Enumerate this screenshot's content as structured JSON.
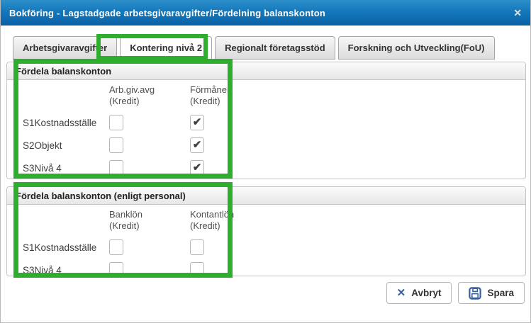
{
  "dialog": {
    "title": "Bokföring - Lagstadgade arbetsgivaravgifter/Fördelning balanskonton"
  },
  "tabs": [
    {
      "label": "Arbetsgivaravgifter",
      "active": false
    },
    {
      "label": "Kontering nivå 2",
      "active": true,
      "annotated": true
    },
    {
      "label": "Regionalt företagsstöd",
      "active": false
    },
    {
      "label": "Forskning och Utveckling(FoU)",
      "active": false
    }
  ],
  "sections": [
    {
      "title": "Fördela balanskonton",
      "columns": [
        {
          "line1": "Arb.giv.avg",
          "line2": "(Kredit)"
        },
        {
          "line1": "Förmåner",
          "line2": "(Kredit)"
        }
      ],
      "rows": [
        {
          "label": "S1Kostnadsställe",
          "checks": [
            false,
            true
          ]
        },
        {
          "label": "S2Objekt",
          "checks": [
            false,
            true
          ]
        },
        {
          "label": "S3Nivå 4",
          "checks": [
            false,
            true
          ]
        }
      ]
    },
    {
      "title": "Fördela balanskonton (enligt personal)",
      "columns": [
        {
          "line1": "Banklön",
          "line2": "(Kredit)"
        },
        {
          "line1": "Kontantlön",
          "line2": "(Kredit)"
        }
      ],
      "rows": [
        {
          "label": "S1Kostnadsställe",
          "checks": [
            false,
            false
          ]
        },
        {
          "label": "S3Nivå 4",
          "checks": [
            false,
            false
          ]
        }
      ]
    }
  ],
  "footer": {
    "cancel_label": "Avbryt",
    "save_label": "Spara"
  },
  "glyphs": {
    "close_x": "✕",
    "cancel_x": "✕",
    "checkmark": "✔"
  },
  "colors": {
    "titlebar_top": "#2d8fc9",
    "titlebar_mid": "#1478bd",
    "titlebar_bottom": "#0b61a4",
    "annotation_green": "#2fae2e",
    "button_icon_blue": "#38609f"
  }
}
